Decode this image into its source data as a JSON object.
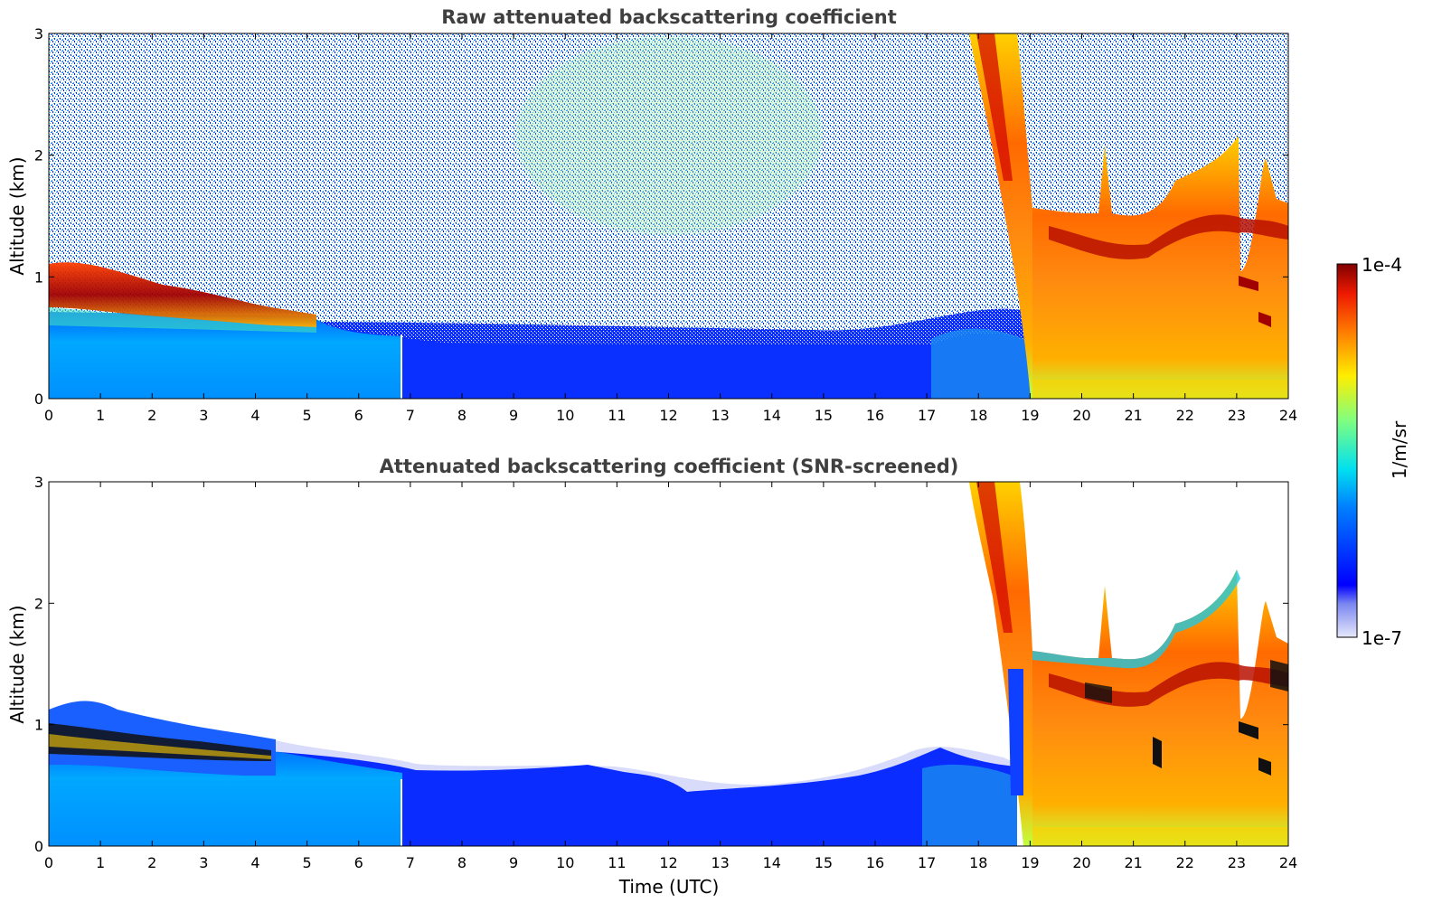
{
  "chart_data": [
    {
      "type": "heatmap",
      "title": "Raw attenuated backscattering coefficient",
      "xlabel": "",
      "ylabel": "Altitude (km)",
      "xlim": [
        0,
        24
      ],
      "ylim": [
        0,
        3
      ],
      "x_ticks": [
        "0",
        "1",
        "2",
        "3",
        "4",
        "5",
        "6",
        "7",
        "8",
        "9",
        "10",
        "11",
        "12",
        "13",
        "14",
        "15",
        "16",
        "17",
        "18",
        "19",
        "20",
        "21",
        "22",
        "23",
        "24"
      ],
      "y_ticks": [
        "0",
        "1",
        "2",
        "3"
      ],
      "colorbar": {
        "label": "1/m/sr",
        "min_label": "1e-7",
        "max_label": "1e-4",
        "scale": "log",
        "colormap": "jet"
      },
      "regions": [
        {
          "name": "morning cloud layer",
          "time": [
            0,
            5.2
          ],
          "altitude_km": [
            0.55,
            1.15
          ],
          "level": "high"
        },
        {
          "name": "boundary layer aerosol",
          "time": [
            0,
            19
          ],
          "altitude_km": [
            0,
            0.6
          ],
          "level": "medium"
        },
        {
          "name": "noisy free troposphere",
          "time": [
            0,
            24
          ],
          "altitude_km": [
            0.6,
            3
          ],
          "level": "low-noisy"
        },
        {
          "name": "precipitation / cloud",
          "time": [
            17.8,
            19.1
          ],
          "altitude_km": [
            1.4,
            3
          ],
          "level": "high"
        },
        {
          "name": "evening cloud and rain",
          "time": [
            19.05,
            24
          ],
          "altitude_km": [
            0,
            2.2
          ],
          "level": "high"
        }
      ]
    },
    {
      "type": "heatmap",
      "title": "Attenuated backscattering coefficient (SNR-screened)",
      "xlabel": "Time (UTC)",
      "ylabel": "Altitude (km)",
      "xlim": [
        0,
        24
      ],
      "ylim": [
        0,
        3
      ],
      "x_ticks": [
        "0",
        "1",
        "2",
        "3",
        "4",
        "5",
        "6",
        "7",
        "8",
        "9",
        "10",
        "11",
        "12",
        "13",
        "14",
        "15",
        "16",
        "17",
        "18",
        "19",
        "20",
        "21",
        "22",
        "23",
        "24"
      ],
      "y_ticks": [
        "0",
        "1",
        "2",
        "3"
      ],
      "colorbar": {
        "label": "1/m/sr",
        "min_label": "1e-7",
        "max_label": "1e-4",
        "scale": "log",
        "colormap": "jet"
      },
      "regions": [
        {
          "name": "morning cloud layer",
          "time": [
            0,
            5.2
          ],
          "altitude_km": [
            0.55,
            1.2
          ],
          "level": "high"
        },
        {
          "name": "boundary layer aerosol",
          "time": [
            0,
            19
          ],
          "altitude_km": [
            0,
            0.8
          ],
          "level": "medium"
        },
        {
          "name": "precipitation / cloud",
          "time": [
            17.8,
            19.1
          ],
          "altitude_km": [
            1.4,
            3
          ],
          "level": "high"
        },
        {
          "name": "evening cloud and rain",
          "time": [
            19.05,
            24
          ],
          "altitude_km": [
            0,
            2.3
          ],
          "level": "high"
        }
      ]
    }
  ]
}
